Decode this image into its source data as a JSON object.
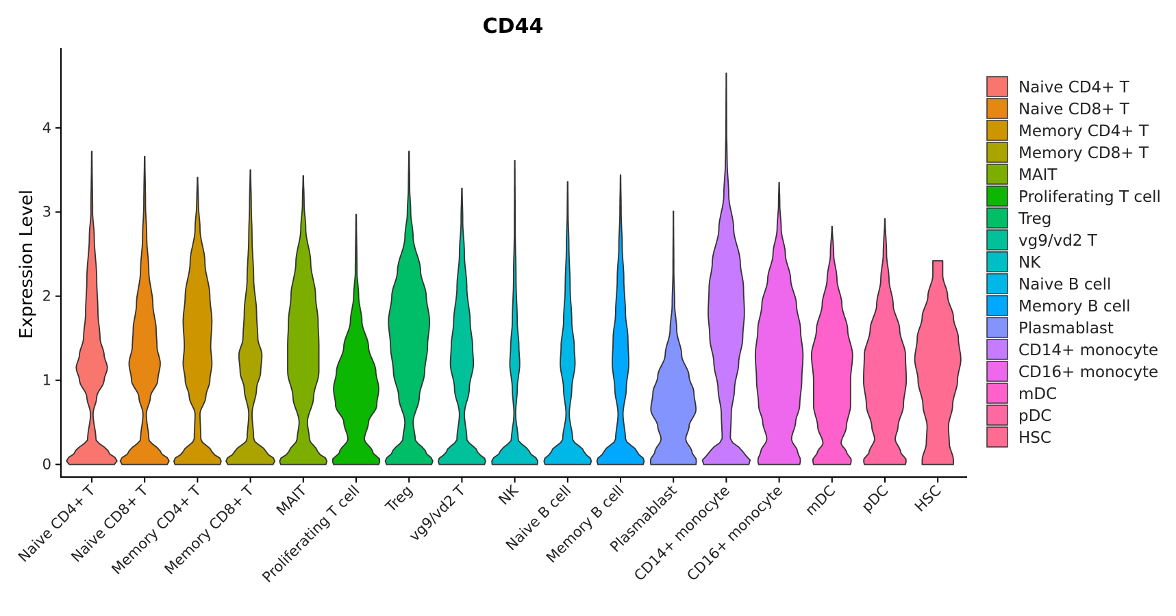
{
  "chart_data": {
    "type": "violin",
    "title": "CD44",
    "xlabel": "",
    "ylabel": "Expression Level",
    "ylim": [
      -0.15,
      4.95
    ],
    "yticks": [
      0,
      1,
      2,
      3,
      4
    ],
    "grid": false,
    "legend_position": "right",
    "categories": [
      "Naive CD4+ T",
      "Naive CD8+ T",
      "Memory CD4+ T",
      "Memory CD8+ T",
      "MAIT",
      "Proliferating T cell",
      "Treg",
      "vg9/vd2 T",
      "NK",
      "Naive B cell",
      "Memory B cell",
      "Plasmablast",
      "CD14+ monocyte",
      "CD16+ monocyte",
      "mDC",
      "pDC",
      "HSC"
    ],
    "colors": [
      "#F8766D",
      "#E68613",
      "#CD9600",
      "#ABA300",
      "#7CAE00",
      "#0CB702",
      "#00BE67",
      "#00C19A",
      "#00BFC4",
      "#00B8E7",
      "#00A9FF",
      "#8494FF",
      "#C77CFF",
      "#ED68ED",
      "#FF61CC",
      "#FF68A1",
      "#FF6C91"
    ],
    "series": [
      {
        "name": "Naive CD4+ T",
        "max": 3.72,
        "profile": [
          [
            0,
            0.55
          ],
          [
            0.05,
            0.62
          ],
          [
            0.15,
            0.4
          ],
          [
            0.3,
            0.1
          ],
          [
            0.6,
            0.03
          ],
          [
            0.8,
            0.12
          ],
          [
            1.0,
            0.3
          ],
          [
            1.15,
            0.38
          ],
          [
            1.3,
            0.3
          ],
          [
            1.5,
            0.2
          ],
          [
            1.8,
            0.15
          ],
          [
            2.2,
            0.12
          ],
          [
            2.7,
            0.06
          ],
          [
            3.0,
            0.02
          ],
          [
            3.72,
            0.005
          ]
        ]
      },
      {
        "name": "Naive CD8+ T",
        "max": 3.66,
        "profile": [
          [
            0,
            0.55
          ],
          [
            0.05,
            0.6
          ],
          [
            0.15,
            0.38
          ],
          [
            0.3,
            0.1
          ],
          [
            0.6,
            0.04
          ],
          [
            0.8,
            0.14
          ],
          [
            1.0,
            0.32
          ],
          [
            1.2,
            0.38
          ],
          [
            1.4,
            0.3
          ],
          [
            1.6,
            0.28
          ],
          [
            1.9,
            0.2
          ],
          [
            2.3,
            0.1
          ],
          [
            2.7,
            0.05
          ],
          [
            3.1,
            0.02
          ],
          [
            3.66,
            0.005
          ]
        ]
      },
      {
        "name": "Memory CD4+ T",
        "max": 3.41,
        "profile": [
          [
            0,
            0.55
          ],
          [
            0.05,
            0.58
          ],
          [
            0.15,
            0.35
          ],
          [
            0.3,
            0.08
          ],
          [
            0.6,
            0.06
          ],
          [
            0.8,
            0.2
          ],
          [
            1.0,
            0.3
          ],
          [
            1.2,
            0.35
          ],
          [
            1.4,
            0.32
          ],
          [
            1.7,
            0.35
          ],
          [
            2.0,
            0.3
          ],
          [
            2.4,
            0.18
          ],
          [
            2.8,
            0.06
          ],
          [
            3.1,
            0.02
          ],
          [
            3.41,
            0.005
          ]
        ]
      },
      {
        "name": "Memory CD8+ T",
        "max": 3.5,
        "profile": [
          [
            0,
            0.55
          ],
          [
            0.05,
            0.6
          ],
          [
            0.15,
            0.38
          ],
          [
            0.3,
            0.08
          ],
          [
            0.6,
            0.04
          ],
          [
            0.9,
            0.15
          ],
          [
            1.1,
            0.25
          ],
          [
            1.3,
            0.28
          ],
          [
            1.5,
            0.18
          ],
          [
            1.8,
            0.15
          ],
          [
            2.2,
            0.08
          ],
          [
            2.7,
            0.04
          ],
          [
            3.1,
            0.02
          ],
          [
            3.5,
            0.005
          ]
        ]
      },
      {
        "name": "MAIT",
        "max": 3.43,
        "profile": [
          [
            0,
            0.55
          ],
          [
            0.05,
            0.58
          ],
          [
            0.15,
            0.35
          ],
          [
            0.3,
            0.15
          ],
          [
            0.5,
            0.1
          ],
          [
            0.8,
            0.25
          ],
          [
            1.1,
            0.38
          ],
          [
            1.4,
            0.38
          ],
          [
            1.7,
            0.36
          ],
          [
            2.0,
            0.3
          ],
          [
            2.4,
            0.18
          ],
          [
            2.8,
            0.06
          ],
          [
            3.1,
            0.02
          ],
          [
            3.43,
            0.005
          ]
        ]
      },
      {
        "name": "Proliferating T cell",
        "max": 2.97,
        "profile": [
          [
            0,
            0.55
          ],
          [
            0.05,
            0.58
          ],
          [
            0.15,
            0.4
          ],
          [
            0.3,
            0.2
          ],
          [
            0.5,
            0.3
          ],
          [
            0.7,
            0.5
          ],
          [
            0.9,
            0.55
          ],
          [
            1.1,
            0.48
          ],
          [
            1.4,
            0.3
          ],
          [
            1.7,
            0.14
          ],
          [
            2.0,
            0.06
          ],
          [
            2.3,
            0.02
          ],
          [
            2.97,
            0.005
          ]
        ]
      },
      {
        "name": "Treg",
        "max": 3.72,
        "profile": [
          [
            0,
            0.55
          ],
          [
            0.05,
            0.58
          ],
          [
            0.15,
            0.4
          ],
          [
            0.3,
            0.15
          ],
          [
            0.5,
            0.1
          ],
          [
            0.8,
            0.25
          ],
          [
            1.1,
            0.38
          ],
          [
            1.4,
            0.45
          ],
          [
            1.7,
            0.5
          ],
          [
            2.0,
            0.42
          ],
          [
            2.3,
            0.28
          ],
          [
            2.7,
            0.1
          ],
          [
            3.0,
            0.04
          ],
          [
            3.3,
            0.015
          ],
          [
            3.72,
            0.005
          ]
        ]
      },
      {
        "name": "vg9/vd2 T",
        "max": 3.28,
        "profile": [
          [
            0,
            0.55
          ],
          [
            0.05,
            0.58
          ],
          [
            0.15,
            0.38
          ],
          [
            0.3,
            0.12
          ],
          [
            0.6,
            0.06
          ],
          [
            0.9,
            0.18
          ],
          [
            1.2,
            0.28
          ],
          [
            1.4,
            0.26
          ],
          [
            1.7,
            0.2
          ],
          [
            2.1,
            0.12
          ],
          [
            2.5,
            0.06
          ],
          [
            2.9,
            0.02
          ],
          [
            3.28,
            0.005
          ]
        ]
      },
      {
        "name": "NK",
        "max": 3.61,
        "profile": [
          [
            0,
            0.55
          ],
          [
            0.05,
            0.56
          ],
          [
            0.15,
            0.35
          ],
          [
            0.3,
            0.08
          ],
          [
            0.6,
            0.02
          ],
          [
            0.9,
            0.06
          ],
          [
            1.2,
            0.12
          ],
          [
            1.4,
            0.1
          ],
          [
            1.7,
            0.06
          ],
          [
            2.2,
            0.03
          ],
          [
            2.8,
            0.01
          ],
          [
            3.61,
            0.004
          ]
        ]
      },
      {
        "name": "Naive B cell",
        "max": 3.36,
        "profile": [
          [
            0,
            0.55
          ],
          [
            0.05,
            0.58
          ],
          [
            0.15,
            0.4
          ],
          [
            0.3,
            0.12
          ],
          [
            0.6,
            0.04
          ],
          [
            0.9,
            0.1
          ],
          [
            1.2,
            0.18
          ],
          [
            1.4,
            0.16
          ],
          [
            1.7,
            0.1
          ],
          [
            2.1,
            0.06
          ],
          [
            2.6,
            0.03
          ],
          [
            3.0,
            0.01
          ],
          [
            3.36,
            0.004
          ]
        ]
      },
      {
        "name": "Memory B cell",
        "max": 3.44,
        "profile": [
          [
            0,
            0.55
          ],
          [
            0.05,
            0.58
          ],
          [
            0.15,
            0.4
          ],
          [
            0.3,
            0.12
          ],
          [
            0.6,
            0.06
          ],
          [
            0.9,
            0.14
          ],
          [
            1.2,
            0.2
          ],
          [
            1.5,
            0.18
          ],
          [
            1.8,
            0.12
          ],
          [
            2.2,
            0.08
          ],
          [
            2.6,
            0.04
          ],
          [
            3.0,
            0.015
          ],
          [
            3.44,
            0.004
          ]
        ]
      },
      {
        "name": "Plasmablast",
        "max": 3.01,
        "profile": [
          [
            0,
            0.55
          ],
          [
            0.05,
            0.56
          ],
          [
            0.15,
            0.45
          ],
          [
            0.3,
            0.3
          ],
          [
            0.45,
            0.38
          ],
          [
            0.65,
            0.55
          ],
          [
            0.85,
            0.5
          ],
          [
            1.05,
            0.38
          ],
          [
            1.3,
            0.2
          ],
          [
            1.6,
            0.08
          ],
          [
            1.9,
            0.03
          ],
          [
            2.3,
            0.01
          ],
          [
            3.01,
            0.003
          ]
        ]
      },
      {
        "name": "CD14+ monocyte",
        "max": 4.65,
        "profile": [
          [
            0,
            0.55
          ],
          [
            0.05,
            0.58
          ],
          [
            0.15,
            0.4
          ],
          [
            0.3,
            0.1
          ],
          [
            0.6,
            0.12
          ],
          [
            0.9,
            0.2
          ],
          [
            1.2,
            0.3
          ],
          [
            1.5,
            0.4
          ],
          [
            1.8,
            0.44
          ],
          [
            2.1,
            0.42
          ],
          [
            2.4,
            0.34
          ],
          [
            2.8,
            0.18
          ],
          [
            3.2,
            0.06
          ],
          [
            3.6,
            0.02
          ],
          [
            4.0,
            0.008
          ],
          [
            4.65,
            0.003
          ]
        ]
      },
      {
        "name": "CD16+ monocyte",
        "max": 3.35,
        "profile": [
          [
            0,
            0.5
          ],
          [
            0.05,
            0.52
          ],
          [
            0.15,
            0.45
          ],
          [
            0.3,
            0.3
          ],
          [
            0.5,
            0.4
          ],
          [
            0.7,
            0.5
          ],
          [
            1.0,
            0.55
          ],
          [
            1.3,
            0.58
          ],
          [
            1.6,
            0.52
          ],
          [
            1.9,
            0.42
          ],
          [
            2.2,
            0.28
          ],
          [
            2.5,
            0.15
          ],
          [
            2.8,
            0.05
          ],
          [
            3.1,
            0.015
          ],
          [
            3.35,
            0.004
          ]
        ]
      },
      {
        "name": "mDC",
        "max": 2.83,
        "profile": [
          [
            0,
            0.45
          ],
          [
            0.05,
            0.47
          ],
          [
            0.15,
            0.35
          ],
          [
            0.25,
            0.22
          ],
          [
            0.45,
            0.35
          ],
          [
            0.7,
            0.45
          ],
          [
            1.0,
            0.45
          ],
          [
            1.3,
            0.5
          ],
          [
            1.6,
            0.38
          ],
          [
            1.9,
            0.24
          ],
          [
            2.2,
            0.12
          ],
          [
            2.5,
            0.04
          ],
          [
            2.83,
            0.004
          ]
        ]
      },
      {
        "name": "pDC",
        "max": 2.92,
        "profile": [
          [
            0,
            0.5
          ],
          [
            0.05,
            0.52
          ],
          [
            0.15,
            0.38
          ],
          [
            0.3,
            0.25
          ],
          [
            0.45,
            0.32
          ],
          [
            0.7,
            0.45
          ],
          [
            1.0,
            0.52
          ],
          [
            1.3,
            0.5
          ],
          [
            1.6,
            0.36
          ],
          [
            1.9,
            0.2
          ],
          [
            2.2,
            0.1
          ],
          [
            2.5,
            0.04
          ],
          [
            2.92,
            0.004
          ]
        ]
      },
      {
        "name": "HSC",
        "max": 2.42,
        "profile": [
          [
            0,
            0.38
          ],
          [
            0.05,
            0.38
          ],
          [
            0.25,
            0.28
          ],
          [
            0.45,
            0.26
          ],
          [
            0.7,
            0.36
          ],
          [
            1.0,
            0.48
          ],
          [
            1.25,
            0.56
          ],
          [
            1.5,
            0.5
          ],
          [
            1.75,
            0.38
          ],
          [
            2.0,
            0.24
          ],
          [
            2.25,
            0.12
          ],
          [
            2.42,
            0.12
          ]
        ]
      }
    ]
  }
}
